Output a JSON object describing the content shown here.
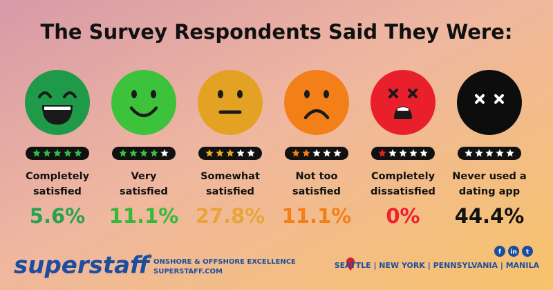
{
  "header": {
    "title": "The Survey Respondents Said They Were:"
  },
  "items": [
    {
      "label_lines": [
        "Completely",
        "satisfied"
      ],
      "value": "5.6%",
      "stars": 5,
      "face_color": "#1f9a48",
      "star_color": "#2fc04a",
      "value_color": "#27a24f"
    },
    {
      "label_lines": [
        "Very",
        "satisfied"
      ],
      "value": "11.1%",
      "stars": 4,
      "face_color": "#3cc33b",
      "star_color": "#3cc33b",
      "value_color": "#36b93a"
    },
    {
      "label_lines": [
        "Somewhat",
        "satisfied"
      ],
      "value": "27.8%",
      "stars": 3,
      "face_color": "#e3a224",
      "star_color": "#f0a820",
      "value_color": "#e9a43a"
    },
    {
      "label_lines": [
        "Not too",
        "satisfied"
      ],
      "value": "11.1%",
      "stars": 2,
      "face_color": "#f27f17",
      "star_color": "#f27f17",
      "value_color": "#f27f17"
    },
    {
      "label_lines": [
        "Completely",
        "dissatisfied"
      ],
      "value": "0%",
      "stars": 1,
      "face_color": "#ea1f2c",
      "star_color": "#ea1f2c",
      "value_color": "#f01f30"
    },
    {
      "label_lines": [
        "Never used a",
        "dating app"
      ],
      "value": "44.4%",
      "stars": 0,
      "face_color": "#0d0d0d",
      "star_color": "#ffffff",
      "value_color": "#111111"
    }
  ],
  "footer": {
    "brand": "superstaff",
    "registered": "®",
    "tagline": "ONSHORE & OFFSHORE EXCELLENCE",
    "website": "SUPERSTAFF.COM",
    "locations": "SEATTLE | NEW YORK | PENNSYLVANIA | MANILA",
    "social": [
      "f",
      "in",
      "t"
    ]
  }
}
